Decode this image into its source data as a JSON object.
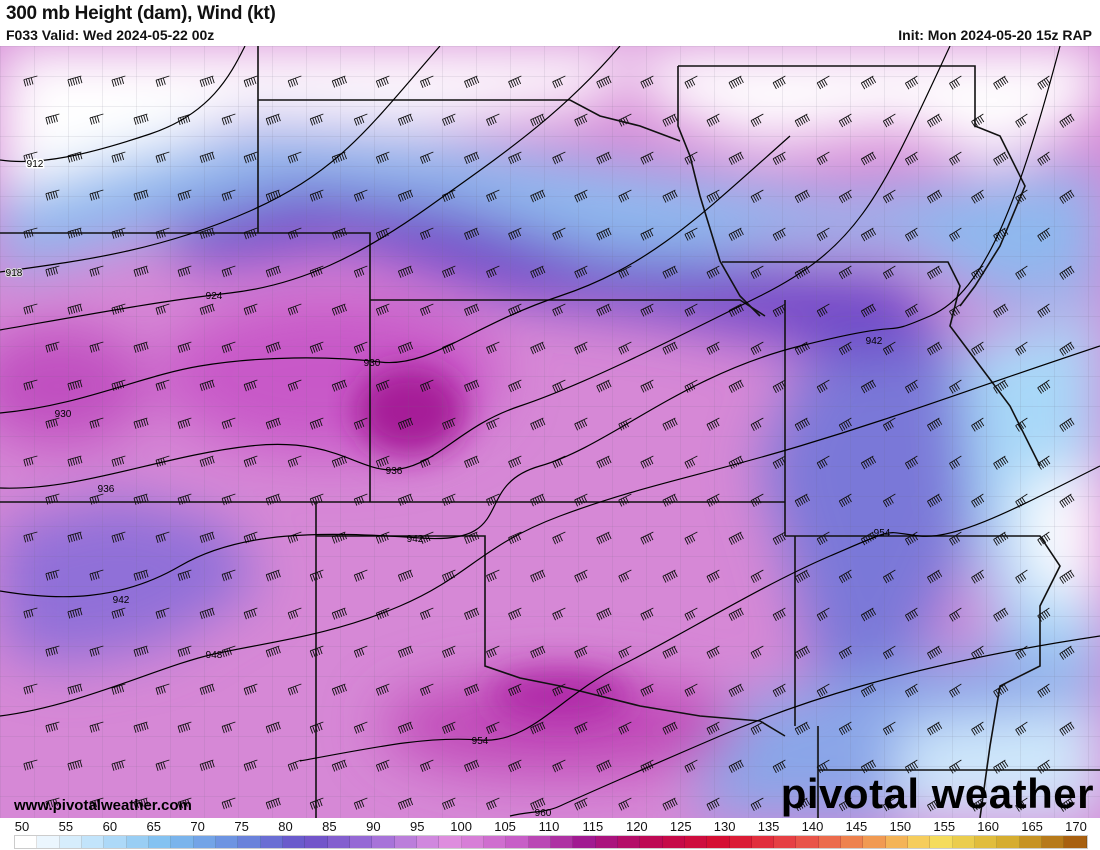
{
  "header": {
    "title": "300 mb Height (dam), Wind (kt)",
    "valid": "F033 Valid: Wed 2024-05-22 00z",
    "init": "Init: Mon 2024-05-20 15z RAP"
  },
  "map": {
    "contour_labels": [
      "912",
      "918",
      "924",
      "930",
      "930",
      "936",
      "936",
      "942",
      "942",
      "948",
      "954",
      "954",
      "942",
      "960"
    ],
    "fill_variable": "wind speed (kt)",
    "contour_variable": "300 mb height (dam)"
  },
  "colorbar": {
    "labels": [
      "50",
      "55",
      "60",
      "65",
      "70",
      "75",
      "80",
      "85",
      "90",
      "95",
      "100",
      "105",
      "110",
      "115",
      "120",
      "125",
      "130",
      "135",
      "140",
      "145",
      "150",
      "155",
      "160",
      "165",
      "170"
    ],
    "stops": [
      "#ffffff",
      "#bfe3fb",
      "#7fbff0",
      "#6a8ee0",
      "#6a50c8",
      "#a070d8",
      "#e090e0",
      "#c860c8",
      "#a01890",
      "#c00850",
      "#d81030",
      "#e84848",
      "#f09050",
      "#f8e060",
      "#d8b030",
      "#a86010"
    ]
  },
  "footer": {
    "website": "www.pivotalweather.com",
    "logo": "pivotal weather"
  }
}
